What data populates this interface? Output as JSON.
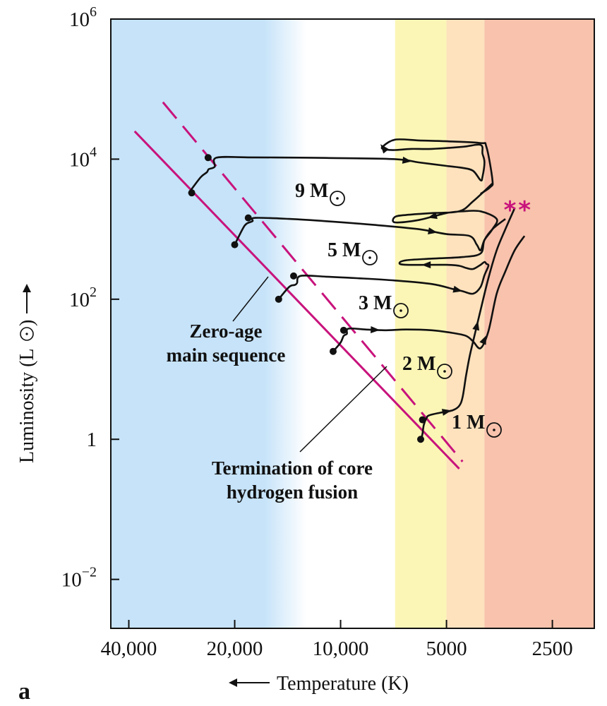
{
  "panel_label": "a",
  "chart_data": {
    "type": "line",
    "title": "",
    "xlabel": "Temperature (K)",
    "ylabel": "Luminosity (L",
    "x_scale": "log",
    "x_reversed": true,
    "y_scale": "log",
    "xlim": [
      45000,
      1900
    ],
    "ylim": [
      0.002,
      1000000
    ],
    "x_ticks": [
      {
        "value": 40000,
        "label": "40,000"
      },
      {
        "value": 20000,
        "label": "20,000"
      },
      {
        "value": 10000,
        "label": "10,000"
      },
      {
        "value": 5000,
        "label": "5000"
      },
      {
        "value": 2500,
        "label": "2500"
      }
    ],
    "y_ticks": [
      {
        "value": 1000000,
        "base": "10",
        "exp": "6"
      },
      {
        "value": 10000,
        "base": "10",
        "exp": "4"
      },
      {
        "value": 100,
        "base": "10",
        "exp": "2"
      },
      {
        "value": 1,
        "base": "1",
        "exp": ""
      },
      {
        "value": 0.01,
        "base": "10",
        "exp": "−2"
      }
    ],
    "grid": false,
    "bands": [
      {
        "name": "blue",
        "from": 45000,
        "to": 14000,
        "color": "#c6e3f9"
      },
      {
        "name": "white",
        "from": 14000,
        "to": 7000,
        "color": "#ffffff"
      },
      {
        "name": "yellow",
        "from": 7000,
        "to": 5000,
        "color": "#fbf6b6"
      },
      {
        "name": "orange",
        "from": 5000,
        "to": 3900,
        "color": "#fde2bd"
      },
      {
        "name": "red",
        "from": 3900,
        "to": 1900,
        "color": "#f8c2ac"
      }
    ],
    "zams": {
      "label": "Zero-age main sequence",
      "color": "#c8137c",
      "line_type": "solid",
      "T": [
        38500,
        4600
      ],
      "L": [
        25000,
        0.38
      ]
    },
    "tams": {
      "label": "Termination of core hydrogen fusion",
      "color": "#c8137c",
      "line_type": "dashed",
      "T": [
        32000,
        4500
      ],
      "L": [
        65000,
        0.48
      ]
    },
    "annotation_lines": {
      "zams_label_text": [
        "Zero-age",
        "main sequence"
      ],
      "tams_label_text": [
        "Termination of core",
        "hydrogen fusion"
      ]
    },
    "series": [
      {
        "name": "9 M",
        "mass_label": "9 M",
        "T": [
          27000,
          25000,
          24000,
          23700,
          22800,
          22500,
          18000,
          13000,
          11000,
          7000,
          6000,
          5000,
          4500,
          4200,
          4000,
          3950,
          3900,
          3950,
          4000,
          4500,
          5500,
          6300,
          7000,
          7500,
          7600,
          7000,
          6000,
          5000,
          4000,
          3850,
          3700,
          3750,
          4000
        ],
        "L": [
          3300,
          5500,
          6500,
          7200,
          7800,
          10500,
          10600,
          10500,
          10400,
          10000,
          9000,
          8000,
          7500,
          6800,
          5000,
          5600,
          9000,
          12000,
          16000,
          15000,
          14000,
          14000,
          13500,
          13800,
          15000,
          19000,
          18500,
          18000,
          17000,
          15000,
          5000,
          4000,
          3200
        ]
      },
      {
        "name": "5 M",
        "mass_label": "5 M",
        "T": [
          20000,
          19000,
          18500,
          17800,
          17500,
          14000,
          11000,
          8000,
          6000,
          5000,
          4300,
          4100,
          4000,
          3900,
          3700,
          3600,
          4000,
          4500,
          5000,
          6000,
          7000,
          7000,
          6500,
          5500,
          4600,
          4200,
          3700
        ],
        "L": [
          600,
          1000,
          1200,
          1300,
          1450,
          1400,
          1300,
          1150,
          1000,
          850,
          800,
          600,
          500,
          700,
          1000,
          1400,
          1800,
          1800,
          1700,
          1350,
          1250,
          1500,
          1600,
          1700,
          1800,
          2500,
          4500
        ]
      },
      {
        "name": "3 M",
        "mass_label": "3 M",
        "T": [
          15000,
          14000,
          13500,
          13300,
          13000,
          11000,
          9000,
          7000,
          5500,
          4800,
          4500,
          4200,
          4000,
          3900,
          3800,
          3850,
          3900,
          4000,
          4200,
          4400,
          4600,
          5000,
          6500,
          6800,
          6500,
          5500,
          4500,
          4000,
          3900,
          3700,
          3400
        ],
        "L": [
          100,
          150,
          160,
          170,
          215,
          210,
          200,
          185,
          165,
          140,
          130,
          120,
          150,
          220,
          300,
          320,
          340,
          310,
          270,
          280,
          300,
          310,
          310,
          330,
          360,
          380,
          400,
          450,
          700,
          1000,
          1400
        ]
      },
      {
        "name": "2 M",
        "mass_label": "2 M",
        "T": [
          10500,
          10000,
          9800,
          9600,
          9500,
          8500,
          7500,
          6500,
          5500,
          4800,
          4400,
          4200,
          4000,
          3800,
          3600,
          3400,
          3200,
          3000
        ],
        "L": [
          18,
          24,
          30,
          32,
          38,
          37,
          36,
          37,
          36,
          33,
          30,
          25,
          20,
          35,
          120,
          250,
          500,
          800
        ]
      },
      {
        "name": "1 M",
        "mass_label": "1 M",
        "T": [
          5900,
          5850,
          5800,
          5700,
          5600,
          5200,
          4800,
          4600,
          4500,
          4400,
          4300,
          4200,
          4000,
          3800,
          3600,
          3400,
          3200
        ],
        "L": [
          1.0,
          1.2,
          1.6,
          2.0,
          2.2,
          2.4,
          2.6,
          3.0,
          4.0,
          8.0,
          15.0,
          25.0,
          70.0,
          200.0,
          500.0,
          1000.0,
          2000.0
        ]
      }
    ],
    "markers": [
      {
        "T": 26500,
        "L": 3300,
        "series": "9 M"
      },
      {
        "T": 23800,
        "L": 10500,
        "series": "9 M"
      },
      {
        "T": 20000,
        "L": 600,
        "series": "5 M"
      },
      {
        "T": 18300,
        "L": 1450,
        "series": "5 M"
      },
      {
        "T": 15000,
        "L": 100,
        "series": "3 M"
      },
      {
        "T": 13600,
        "L": 215,
        "series": "3 M"
      },
      {
        "T": 10500,
        "L": 18,
        "series": "2 M"
      },
      {
        "T": 9800,
        "L": 36,
        "series": "2 M"
      },
      {
        "T": 5920,
        "L": 1.0,
        "series": "1 M"
      },
      {
        "T": 5850,
        "L": 1.9,
        "series": "1 M"
      }
    ],
    "symbols": [
      {
        "text": "*",
        "color": "#c8137c",
        "T": 3300,
        "L": 2000
      },
      {
        "text": "*",
        "color": "#c8137c",
        "T": 3000,
        "L": 2000
      }
    ]
  }
}
